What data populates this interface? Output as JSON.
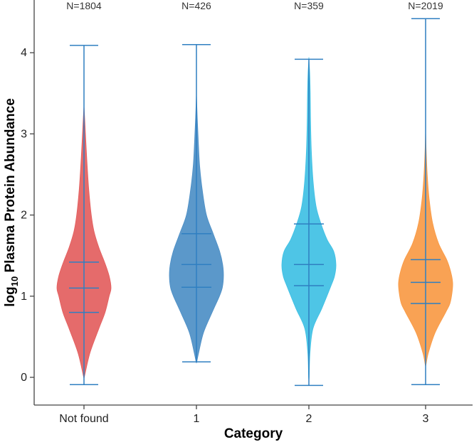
{
  "chart_data": {
    "type": "violin",
    "xlabel": "Category",
    "ylabel_prefix": "log",
    "ylabel_subscript": "10",
    "ylabel_rest": " Plasma Protein Abundance",
    "ylim": [
      -0.15,
      4.55
    ],
    "yticks": [
      0,
      1,
      2,
      3,
      4
    ],
    "grid": false,
    "whisker_color": "#2f7fc1",
    "categories": [
      "Not found",
      "1",
      "2",
      "3"
    ],
    "counts": [
      "N=1804",
      "N=426",
      "N=359",
      "N=2019"
    ],
    "violins": [
      {
        "category": "Not found",
        "color": "#e35e5e",
        "min": -0.09,
        "max": 4.09,
        "q1": 0.8,
        "median": 1.1,
        "q3": 1.42,
        "mode": 1.0,
        "kde_y": [
          0.0,
          0.3,
          0.6,
          0.8,
          1.0,
          1.1,
          1.25,
          1.42,
          1.6,
          1.8,
          2.0,
          2.3,
          2.6,
          2.9,
          3.1,
          3.35
        ],
        "kde_w": [
          0.01,
          0.22,
          0.55,
          0.78,
          0.93,
          1.0,
          0.93,
          0.76,
          0.55,
          0.37,
          0.27,
          0.18,
          0.12,
          0.07,
          0.04,
          0.0
        ]
      },
      {
        "category": "1",
        "color": "#4d8fc6",
        "min": 0.19,
        "max": 4.1,
        "q1": 1.11,
        "median": 1.39,
        "q3": 1.77,
        "mode": 1.35,
        "kde_y": [
          0.19,
          0.3,
          0.55,
          0.8,
          1.0,
          1.11,
          1.25,
          1.39,
          1.55,
          1.77,
          2.0,
          2.3,
          2.6,
          2.9,
          3.2,
          3.5
        ],
        "kde_w": [
          0.01,
          0.08,
          0.26,
          0.58,
          0.85,
          0.96,
          1.0,
          0.97,
          0.86,
          0.62,
          0.37,
          0.22,
          0.12,
          0.07,
          0.03,
          0.0
        ]
      },
      {
        "category": "2",
        "color": "#3fc0e4",
        "min": -0.1,
        "max": 3.92,
        "q1": 1.13,
        "median": 1.39,
        "q3": 1.89,
        "mode": 1.35,
        "kde_y": [
          0.0,
          0.3,
          0.6,
          0.85,
          1.13,
          1.25,
          1.39,
          1.55,
          1.7,
          1.89,
          2.1,
          2.4,
          2.8,
          3.2,
          3.5,
          3.75,
          3.92
        ],
        "kde_w": [
          0.01,
          0.04,
          0.15,
          0.48,
          0.82,
          0.95,
          1.0,
          0.92,
          0.67,
          0.45,
          0.27,
          0.16,
          0.09,
          0.06,
          0.05,
          0.03,
          0.0
        ]
      },
      {
        "category": "3",
        "color": "#f99a45",
        "min": -0.09,
        "max": 4.42,
        "q1": 0.91,
        "median": 1.17,
        "q3": 1.45,
        "mode": 1.15,
        "kde_y": [
          0.15,
          0.3,
          0.55,
          0.8,
          0.91,
          1.05,
          1.17,
          1.3,
          1.45,
          1.65,
          1.9,
          2.2,
          2.5,
          2.8,
          3.05
        ],
        "kde_w": [
          0.01,
          0.1,
          0.35,
          0.74,
          0.9,
          0.98,
          1.0,
          0.93,
          0.78,
          0.48,
          0.26,
          0.13,
          0.06,
          0.02,
          0.0
        ]
      }
    ]
  }
}
